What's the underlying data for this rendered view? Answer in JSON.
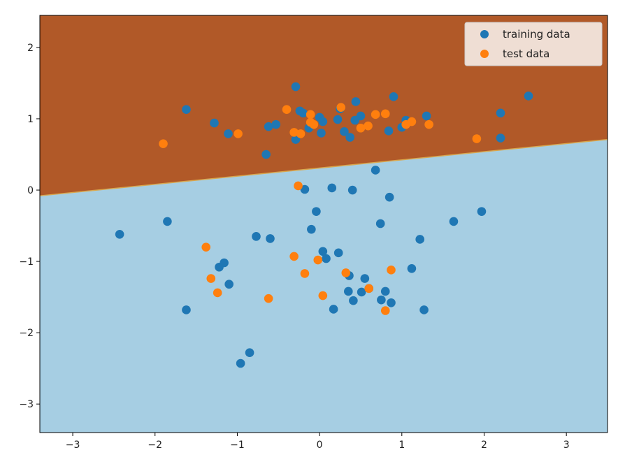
{
  "chart_data": {
    "type": "scatter",
    "title": "",
    "xlabel": "",
    "ylabel": "",
    "xlim": [
      -3.4,
      3.5
    ],
    "ylim": [
      -3.4,
      2.45
    ],
    "xticks": [
      -3,
      -2,
      -1,
      0,
      1,
      2,
      3
    ],
    "xtick_labels": [
      "−3",
      "−2",
      "−1",
      "0",
      "1",
      "2",
      "3"
    ],
    "yticks": [
      -3,
      -2,
      -1,
      0,
      1,
      2
    ],
    "ytick_labels": [
      "−3",
      "−2",
      "−1",
      "0",
      "1",
      "2"
    ],
    "grid": false,
    "decision_boundary": {
      "line": [
        [
          -3.4,
          -0.08
        ],
        [
          3.5,
          0.71
        ]
      ],
      "upper_region_color": "#b15928",
      "lower_region_color": "#a6cee3"
    },
    "legend": {
      "location": "top-right"
    },
    "series": [
      {
        "name": "training data",
        "color": "#1f77b4",
        "points": [
          [
            -2.43,
            -0.62
          ],
          [
            -1.85,
            -0.44
          ],
          [
            -1.62,
            1.13
          ],
          [
            -1.62,
            -1.68
          ],
          [
            -1.28,
            0.94
          ],
          [
            -1.22,
            -1.08
          ],
          [
            -1.16,
            -1.02
          ],
          [
            -1.11,
            0.79
          ],
          [
            -1.1,
            -1.32
          ],
          [
            -0.96,
            -2.43
          ],
          [
            -0.85,
            -2.28
          ],
          [
            -0.77,
            -0.65
          ],
          [
            -0.65,
            0.5
          ],
          [
            -0.62,
            0.89
          ],
          [
            -0.6,
            -0.68
          ],
          [
            -0.53,
            0.92
          ],
          [
            -0.29,
            1.45
          ],
          [
            -0.29,
            0.71
          ],
          [
            -0.24,
            1.11
          ],
          [
            -0.2,
            1.08
          ],
          [
            -0.18,
            0.01
          ],
          [
            -0.13,
            0.87
          ],
          [
            -0.1,
            -0.55
          ],
          [
            -0.04,
            -0.3
          ],
          [
            0.0,
            1.02
          ],
          [
            0.02,
            0.8
          ],
          [
            0.04,
            0.96
          ],
          [
            0.04,
            -0.86
          ],
          [
            0.08,
            -0.96
          ],
          [
            0.15,
            0.03
          ],
          [
            0.17,
            -1.67
          ],
          [
            0.22,
            0.99
          ],
          [
            0.23,
            -0.88
          ],
          [
            0.25,
            1.14
          ],
          [
            0.3,
            0.82
          ],
          [
            0.35,
            -1.42
          ],
          [
            0.36,
            -1.2
          ],
          [
            0.37,
            0.74
          ],
          [
            0.4,
            0.0
          ],
          [
            0.41,
            -1.55
          ],
          [
            0.43,
            0.98
          ],
          [
            0.44,
            1.24
          ],
          [
            0.5,
            1.04
          ],
          [
            0.51,
            -1.43
          ],
          [
            0.55,
            -1.24
          ],
          [
            0.6,
            -1.38
          ],
          [
            0.68,
            0.28
          ],
          [
            0.74,
            -0.47
          ],
          [
            0.75,
            -1.54
          ],
          [
            0.8,
            -1.42
          ],
          [
            0.84,
            0.83
          ],
          [
            0.85,
            -0.1
          ],
          [
            0.87,
            -1.58
          ],
          [
            0.9,
            1.31
          ],
          [
            1.0,
            0.88
          ],
          [
            1.05,
            0.98
          ],
          [
            1.12,
            -1.1
          ],
          [
            1.22,
            -0.69
          ],
          [
            1.27,
            -1.68
          ],
          [
            1.3,
            1.04
          ],
          [
            1.63,
            -0.44
          ],
          [
            1.97,
            -0.3
          ],
          [
            2.2,
            1.08
          ],
          [
            2.2,
            0.73
          ],
          [
            2.54,
            1.32
          ]
        ]
      },
      {
        "name": "test data",
        "color": "#ff7f0e",
        "points": [
          [
            -1.9,
            0.65
          ],
          [
            -1.38,
            -0.8
          ],
          [
            -1.32,
            -1.24
          ],
          [
            -1.24,
            -1.44
          ],
          [
            -0.99,
            0.79
          ],
          [
            -0.62,
            -1.52
          ],
          [
            -0.4,
            1.13
          ],
          [
            -0.31,
            0.81
          ],
          [
            -0.31,
            -0.93
          ],
          [
            -0.26,
            0.06
          ],
          [
            -0.23,
            0.79
          ],
          [
            -0.18,
            -1.17
          ],
          [
            -0.11,
            1.06
          ],
          [
            -0.11,
            0.95
          ],
          [
            -0.07,
            0.92
          ],
          [
            -0.02,
            -0.98
          ],
          [
            0.04,
            -1.48
          ],
          [
            0.26,
            1.16
          ],
          [
            0.32,
            -1.16
          ],
          [
            0.5,
            0.87
          ],
          [
            0.59,
            0.9
          ],
          [
            0.6,
            -1.38
          ],
          [
            0.68,
            1.06
          ],
          [
            0.8,
            1.07
          ],
          [
            0.8,
            -1.69
          ],
          [
            0.87,
            -1.12
          ],
          [
            1.05,
            0.92
          ],
          [
            1.12,
            0.96
          ],
          [
            1.33,
            0.92
          ],
          [
            1.91,
            0.72
          ]
        ]
      }
    ]
  }
}
